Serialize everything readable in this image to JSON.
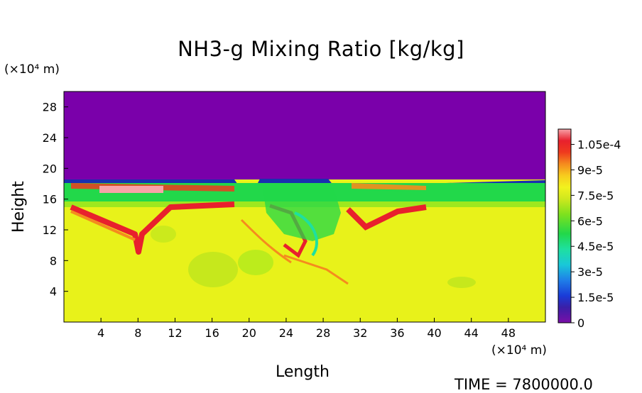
{
  "chart_data": {
    "type": "heatmap",
    "title": "NH3-g Mixing Ratio [kg/kg]",
    "xlabel": "Length",
    "ylabel": "Height",
    "x_unit": "(×10⁴ m)",
    "y_unit": "(×10⁴ m)",
    "xlim": [
      0,
      52
    ],
    "ylim": [
      0,
      30
    ],
    "xticks": [
      4,
      8,
      12,
      16,
      20,
      24,
      28,
      32,
      36,
      40,
      44,
      48
    ],
    "yticks": [
      4,
      8,
      12,
      16,
      20,
      24,
      28
    ],
    "colorbar": {
      "range": [
        0,
        0.000114
      ],
      "tick_labels": [
        "1.05e-4",
        "9e-5",
        "7.5e-5",
        "6e-5",
        "4.5e-5",
        "3e-5",
        "1.5e-5",
        "0"
      ],
      "tick_values": [
        0.000105,
        9e-05,
        7.5e-05,
        6e-05,
        4.5e-05,
        3e-05,
        1.5e-05,
        0
      ]
    },
    "field_summary": {
      "upper_layer": {
        "y_from": 18.5,
        "y_to": 30,
        "value": 0
      },
      "lower_layer": {
        "y_from": 0,
        "y_to": 15,
        "value": 7.5e-05
      },
      "mid_band": {
        "y_from": 15,
        "y_to": 18,
        "value": 6e-05
      }
    },
    "footer_text": "TIME = 7800000.0"
  }
}
